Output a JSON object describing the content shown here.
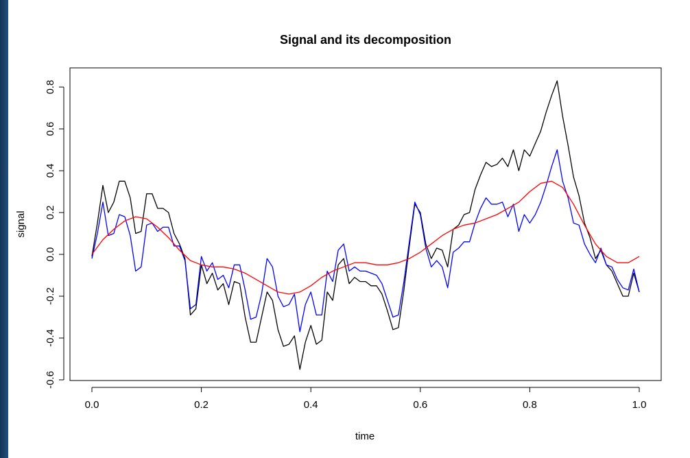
{
  "chart_data": {
    "type": "line",
    "title": "Signal and its decomposition",
    "xlabel": "time",
    "ylabel": "signal",
    "xlim": [
      0,
      1
    ],
    "ylim": [
      -0.6,
      0.84
    ],
    "x_ticks": [
      "0.0",
      "0.2",
      "0.4",
      "0.6",
      "0.8",
      "1.0"
    ],
    "x_tick_values": [
      0,
      0.2,
      0.4,
      0.6,
      0.8,
      1.0
    ],
    "y_ticks": [
      "-0.6",
      "-0.4",
      "-0.2",
      "0.0",
      "0.2",
      "0.4",
      "0.6",
      "0.8"
    ],
    "y_tick_values": [
      -0.6,
      -0.4,
      -0.2,
      0.0,
      0.2,
      0.4,
      0.6,
      0.8
    ],
    "grid": false,
    "legend": "none",
    "series": [
      {
        "color": "#000000",
        "x": [
          0.0,
          0.01,
          0.02,
          0.03,
          0.04,
          0.05,
          0.06,
          0.07,
          0.08,
          0.09,
          0.1,
          0.11,
          0.12,
          0.13,
          0.14,
          0.15,
          0.16,
          0.17,
          0.18,
          0.19,
          0.2,
          0.21,
          0.22,
          0.23,
          0.24,
          0.25,
          0.26,
          0.27,
          0.28,
          0.29,
          0.3,
          0.31,
          0.32,
          0.33,
          0.34,
          0.35,
          0.36,
          0.37,
          0.38,
          0.39,
          0.4,
          0.41,
          0.42,
          0.43,
          0.44,
          0.45,
          0.46,
          0.47,
          0.48,
          0.49,
          0.5,
          0.51,
          0.52,
          0.53,
          0.54,
          0.55,
          0.56,
          0.57,
          0.58,
          0.59,
          0.6,
          0.61,
          0.62,
          0.63,
          0.64,
          0.65,
          0.66,
          0.67,
          0.68,
          0.69,
          0.7,
          0.71,
          0.72,
          0.73,
          0.74,
          0.75,
          0.76,
          0.77,
          0.78,
          0.79,
          0.8,
          0.81,
          0.82,
          0.83,
          0.84,
          0.85,
          0.86,
          0.87,
          0.88,
          0.89,
          0.9,
          0.91,
          0.92,
          0.93,
          0.94,
          0.95,
          0.96,
          0.97,
          0.98,
          0.99,
          1.0
        ],
        "values": [
          -0.01,
          0.15,
          0.33,
          0.2,
          0.25,
          0.35,
          0.35,
          0.27,
          0.1,
          0.11,
          0.29,
          0.29,
          0.22,
          0.22,
          0.2,
          0.1,
          0.05,
          -0.02,
          -0.29,
          -0.26,
          -0.05,
          -0.14,
          -0.09,
          -0.17,
          -0.14,
          -0.24,
          -0.13,
          -0.14,
          -0.3,
          -0.42,
          -0.42,
          -0.3,
          -0.18,
          -0.22,
          -0.36,
          -0.44,
          -0.43,
          -0.39,
          -0.55,
          -0.42,
          -0.34,
          -0.43,
          -0.41,
          -0.18,
          -0.22,
          -0.05,
          -0.02,
          -0.14,
          -0.11,
          -0.13,
          -0.13,
          -0.15,
          -0.15,
          -0.19,
          -0.27,
          -0.36,
          -0.35,
          -0.17,
          0.04,
          0.24,
          0.2,
          0.05,
          -0.02,
          0.03,
          0.02,
          -0.06,
          0.12,
          0.14,
          0.19,
          0.2,
          0.31,
          0.38,
          0.44,
          0.42,
          0.43,
          0.46,
          0.42,
          0.5,
          0.4,
          0.5,
          0.47,
          0.53,
          0.59,
          0.68,
          0.76,
          0.83,
          0.66,
          0.52,
          0.37,
          0.28,
          0.15,
          0.08,
          -0.02,
          0.02,
          -0.05,
          -0.08,
          -0.14,
          -0.2,
          -0.2,
          -0.09,
          -0.18
        ]
      },
      {
        "color": "#0000ff",
        "x": [
          0.0,
          0.01,
          0.02,
          0.03,
          0.04,
          0.05,
          0.06,
          0.07,
          0.08,
          0.09,
          0.1,
          0.11,
          0.12,
          0.13,
          0.14,
          0.15,
          0.16,
          0.17,
          0.18,
          0.19,
          0.2,
          0.21,
          0.22,
          0.23,
          0.24,
          0.25,
          0.26,
          0.27,
          0.28,
          0.29,
          0.3,
          0.31,
          0.32,
          0.33,
          0.34,
          0.35,
          0.36,
          0.37,
          0.38,
          0.39,
          0.4,
          0.41,
          0.42,
          0.43,
          0.44,
          0.45,
          0.46,
          0.47,
          0.48,
          0.49,
          0.5,
          0.51,
          0.52,
          0.53,
          0.54,
          0.55,
          0.56,
          0.57,
          0.58,
          0.59,
          0.6,
          0.61,
          0.62,
          0.63,
          0.64,
          0.65,
          0.66,
          0.67,
          0.68,
          0.69,
          0.7,
          0.71,
          0.72,
          0.73,
          0.74,
          0.75,
          0.76,
          0.77,
          0.78,
          0.79,
          0.8,
          0.81,
          0.82,
          0.83,
          0.84,
          0.85,
          0.86,
          0.87,
          0.88,
          0.89,
          0.9,
          0.91,
          0.92,
          0.93,
          0.94,
          0.95,
          0.96,
          0.97,
          0.98,
          0.99,
          1.0
        ],
        "values": [
          -0.02,
          0.1,
          0.25,
          0.09,
          0.1,
          0.19,
          0.18,
          0.09,
          -0.08,
          -0.06,
          0.14,
          0.15,
          0.11,
          0.13,
          0.13,
          0.04,
          0.04,
          -0.03,
          -0.26,
          -0.24,
          -0.01,
          -0.08,
          -0.04,
          -0.12,
          -0.1,
          -0.16,
          -0.05,
          -0.05,
          -0.17,
          -0.31,
          -0.3,
          -0.19,
          -0.02,
          -0.06,
          -0.2,
          -0.25,
          -0.24,
          -0.19,
          -0.37,
          -0.24,
          -0.18,
          -0.29,
          -0.29,
          -0.08,
          -0.13,
          0.02,
          0.05,
          -0.08,
          -0.06,
          -0.08,
          -0.08,
          -0.09,
          -0.1,
          -0.14,
          -0.22,
          -0.3,
          -0.29,
          -0.13,
          0.06,
          0.25,
          0.19,
          0.03,
          -0.06,
          -0.03,
          -0.06,
          -0.16,
          0.01,
          0.03,
          0.06,
          0.06,
          0.15,
          0.22,
          0.27,
          0.24,
          0.24,
          0.25,
          0.18,
          0.24,
          0.11,
          0.19,
          0.15,
          0.19,
          0.25,
          0.33,
          0.42,
          0.5,
          0.35,
          0.27,
          0.15,
          0.14,
          0.05,
          0.0,
          -0.04,
          0.03,
          -0.05,
          -0.06,
          -0.12,
          -0.16,
          -0.17,
          -0.07,
          -0.18
        ]
      },
      {
        "color": "#ff0000",
        "x": [
          0.0,
          0.02,
          0.04,
          0.06,
          0.08,
          0.1,
          0.12,
          0.14,
          0.16,
          0.18,
          0.2,
          0.22,
          0.24,
          0.26,
          0.28,
          0.3,
          0.32,
          0.34,
          0.36,
          0.38,
          0.4,
          0.42,
          0.44,
          0.46,
          0.48,
          0.5,
          0.52,
          0.54,
          0.56,
          0.58,
          0.6,
          0.62,
          0.64,
          0.66,
          0.68,
          0.7,
          0.72,
          0.74,
          0.76,
          0.78,
          0.8,
          0.82,
          0.84,
          0.86,
          0.88,
          0.9,
          0.92,
          0.94,
          0.96,
          0.98,
          1.0
        ],
        "values": [
          0.0,
          0.07,
          0.12,
          0.16,
          0.18,
          0.17,
          0.13,
          0.08,
          0.02,
          -0.03,
          -0.05,
          -0.06,
          -0.06,
          -0.07,
          -0.09,
          -0.12,
          -0.15,
          -0.18,
          -0.19,
          -0.18,
          -0.15,
          -0.11,
          -0.08,
          -0.06,
          -0.04,
          -0.04,
          -0.05,
          -0.05,
          -0.04,
          -0.02,
          0.01,
          0.05,
          0.09,
          0.12,
          0.14,
          0.15,
          0.17,
          0.19,
          0.22,
          0.25,
          0.3,
          0.34,
          0.35,
          0.32,
          0.24,
          0.14,
          0.05,
          -0.01,
          -0.04,
          -0.04,
          -0.01
        ]
      }
    ]
  }
}
